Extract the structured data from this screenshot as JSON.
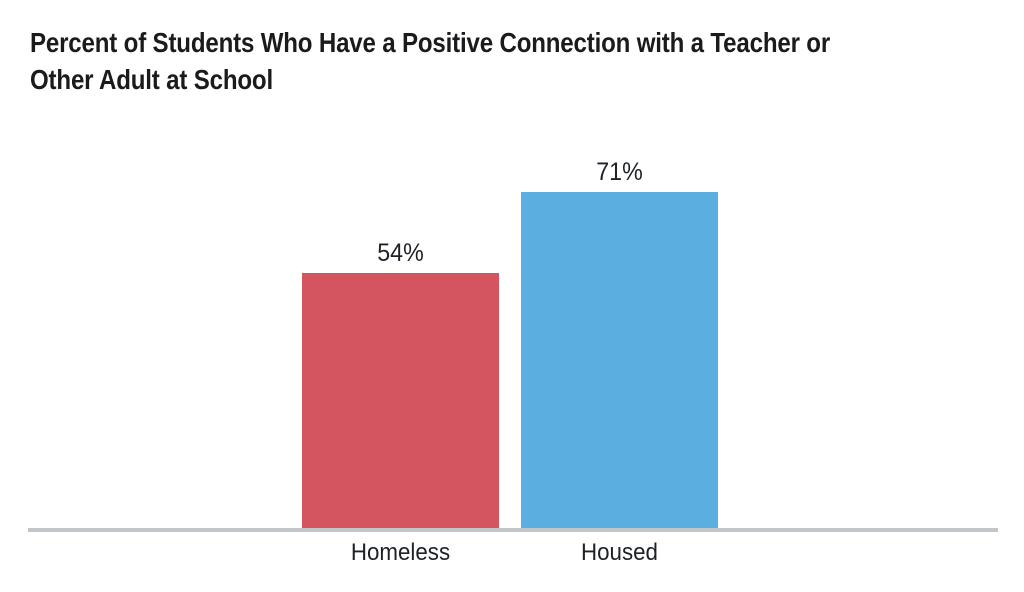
{
  "chart_data": {
    "type": "bar",
    "title": "Percent of Students Who Have a Positive Connection with a Teacher or Other Adult at School",
    "title_lines": [
      "Percent of Students Who Have a Positive Connection with a Teacher or",
      "Other Adult at School"
    ],
    "categories": [
      "Homeless",
      "Housed"
    ],
    "values": [
      54,
      71
    ],
    "value_labels": [
      "54%",
      "71%"
    ],
    "bar_colors": [
      "#D4555F",
      "#5BAFE0"
    ],
    "xlabel": "",
    "ylabel": "",
    "ylim": [
      0,
      100
    ],
    "grid": false,
    "legend": false,
    "axis_line_color": "#C3C6C9",
    "title_color": "#1B1B1E",
    "label_color": "#1E2127"
  }
}
